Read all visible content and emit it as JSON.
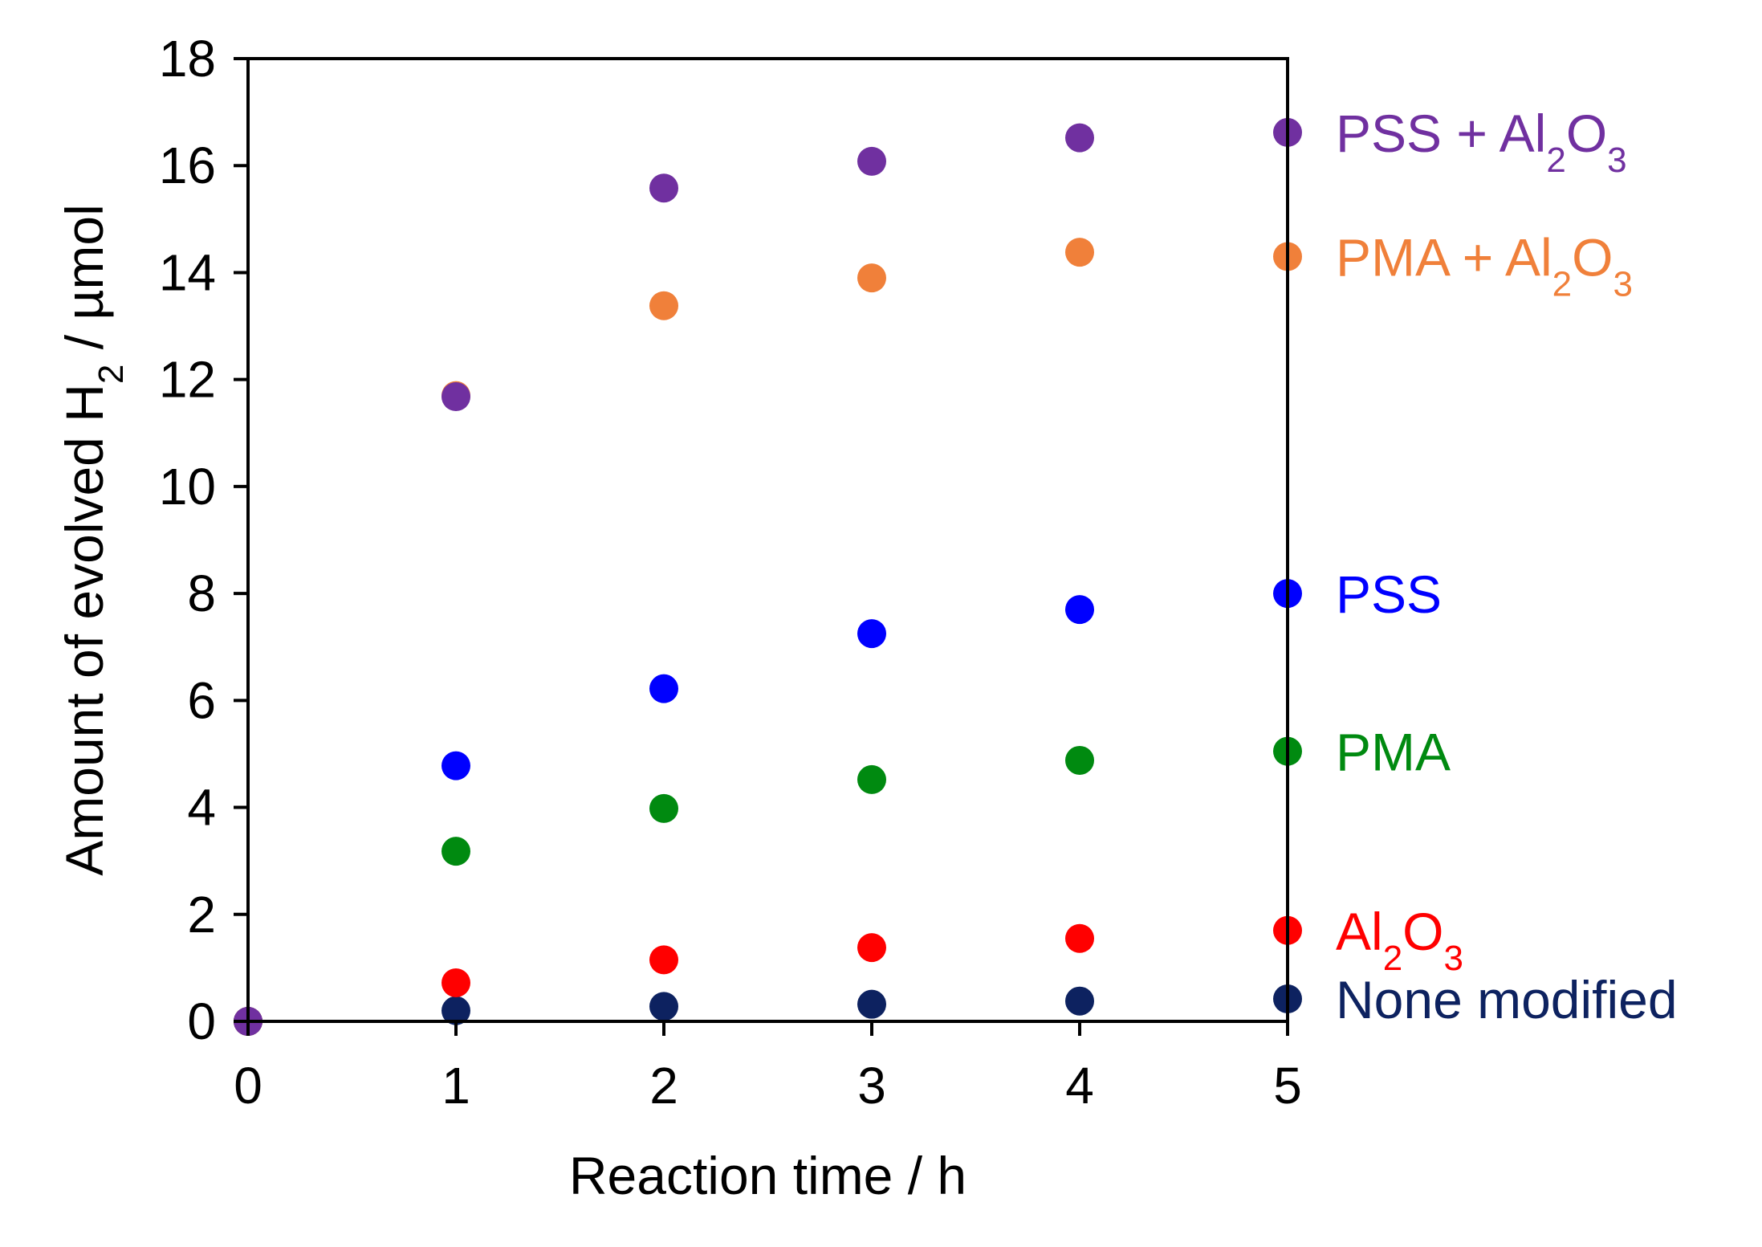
{
  "chart_data": {
    "type": "scatter",
    "xlabel": "Reaction time / h",
    "ylabel_parts": [
      "Amount of evolved H",
      "2",
      " / µmol"
    ],
    "xlim": [
      0,
      5
    ],
    "ylim": [
      0,
      18
    ],
    "xticks": [
      0,
      1,
      2,
      3,
      4,
      5
    ],
    "yticks": [
      0,
      2,
      4,
      6,
      8,
      10,
      12,
      14,
      16,
      18
    ],
    "grid": false,
    "legend": "right",
    "x": [
      0,
      1,
      2,
      3,
      4,
      5
    ],
    "series": [
      {
        "name": "None modified",
        "label_parts": [
          "None modified"
        ],
        "color": "#0d2260",
        "values": [
          0,
          0.2,
          0.28,
          0.32,
          0.38,
          0.42
        ]
      },
      {
        "name": "Al2O3",
        "label_parts": [
          "Al",
          "2",
          "O",
          "3"
        ],
        "color": "#ff0000",
        "values": [
          0,
          0.72,
          1.15,
          1.38,
          1.55,
          1.7
        ]
      },
      {
        "name": "PMA",
        "label_parts": [
          "PMA"
        ],
        "color": "#008a10",
        "values": [
          0,
          3.18,
          3.98,
          4.52,
          4.88,
          5.05
        ]
      },
      {
        "name": "PSS",
        "label_parts": [
          "PSS"
        ],
        "color": "#0000ff",
        "values": [
          0,
          4.78,
          6.22,
          7.25,
          7.7,
          8.0
        ]
      },
      {
        "name": "PMA + Al2O3",
        "label_parts": [
          "PMA + Al",
          "2",
          "O",
          "3"
        ],
        "color": "#f0803a",
        "values": [
          0,
          11.7,
          13.38,
          13.9,
          14.38,
          14.3
        ]
      },
      {
        "name": "PSS + Al2O3",
        "label_parts": [
          "PSS + Al",
          "2",
          "O",
          "3"
        ],
        "color": "#7030a0",
        "values": [
          0,
          11.68,
          15.58,
          16.08,
          16.52,
          16.62
        ]
      }
    ]
  }
}
